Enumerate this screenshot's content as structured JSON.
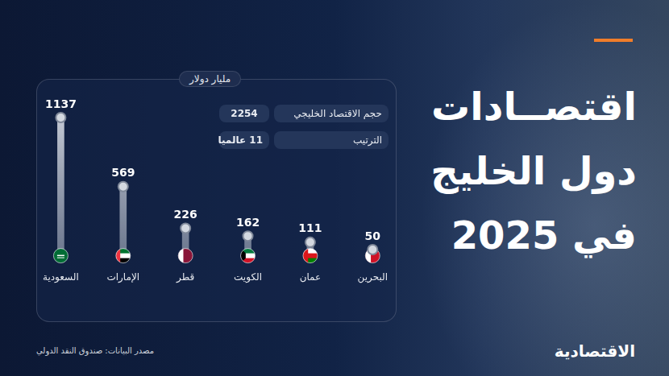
{
  "chart_data": {
    "type": "bar",
    "title": "اقتصــادات دول الخليج في 2025",
    "y_label": "مليار دولار",
    "categories": [
      "السعودية",
      "الإمارات",
      "قطر",
      "الكويت",
      "عمان",
      "البحرين"
    ],
    "values": [
      1137,
      569,
      226,
      162,
      111,
      50
    ],
    "color": "#d8dce4",
    "ylim": [
      0,
      1137
    ],
    "grid": false,
    "data_labels": true,
    "tick_labels": "x",
    "annotations": [
      {
        "label": "حجم الاقتصاد الخليجي",
        "value": 2254
      },
      {
        "label": "الترتيب",
        "value": "11 عالميا"
      }
    ],
    "source": "مصدر البيانات: صندوق النقد الدولي",
    "logo": "الاقتصادية"
  }
}
